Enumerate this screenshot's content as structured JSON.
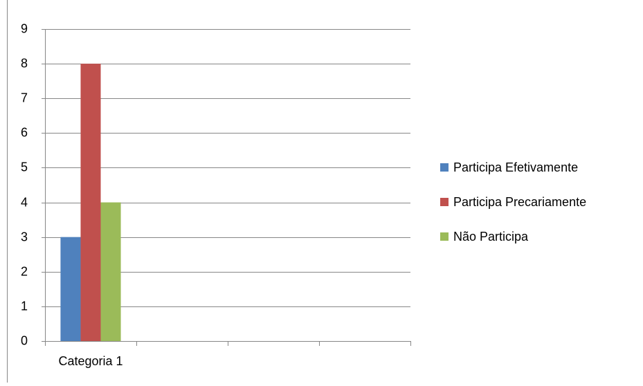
{
  "chart_data": {
    "type": "bar",
    "categories": [
      "Categoria 1",
      null,
      null,
      null
    ],
    "series": [
      {
        "name": "Participa Efetivamente",
        "color": "#4f81bd",
        "values": [
          3,
          null,
          null,
          null
        ]
      },
      {
        "name": "Participa Precariamente",
        "color": "#c0504d",
        "values": [
          8,
          null,
          null,
          null
        ]
      },
      {
        "name": "Não Participa",
        "color": "#9bbb59",
        "values": [
          4,
          null,
          null,
          null
        ]
      }
    ],
    "ylim": [
      0,
      9
    ],
    "yticks": [
      0,
      1,
      2,
      3,
      4,
      5,
      6,
      7,
      8,
      9
    ],
    "grid": true,
    "legend": "right"
  }
}
